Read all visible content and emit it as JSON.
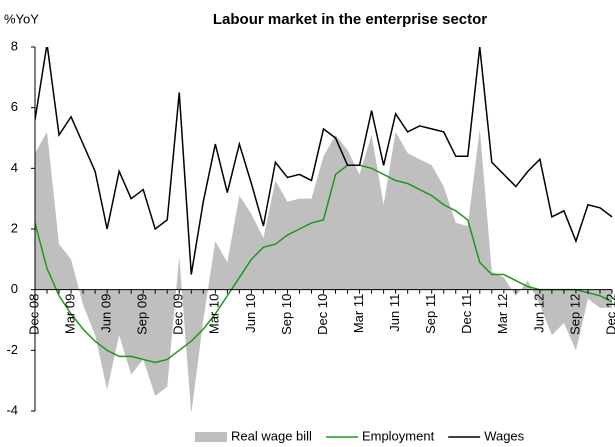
{
  "chart_data": {
    "type": "area-line",
    "title": "Labour market in the enterprise sector",
    "y_label": "%YoY",
    "categories": [
      "Dec 08",
      null,
      null,
      "Mar 09",
      null,
      null,
      "Jun 09",
      null,
      null,
      "Sep 09",
      null,
      null,
      "Dec 09",
      null,
      null,
      "Mar 10",
      null,
      null,
      "Jun 10",
      null,
      null,
      "Sep 10",
      null,
      null,
      "Dec 10",
      null,
      null,
      "Mar 11",
      null,
      null,
      "Jun 11",
      null,
      null,
      "Sep 11",
      null,
      null,
      "Dec 11",
      null,
      null,
      "Mar 12",
      null,
      null,
      "Jun 12",
      null,
      null,
      "Sep 12",
      null,
      null,
      "Dec 12"
    ],
    "ylim": [
      -4,
      8
    ],
    "yticks": [
      -4,
      -2,
      0,
      2,
      4,
      6,
      8
    ],
    "legend": "bottom",
    "series": [
      {
        "name": "Real wage bill",
        "kind": "area",
        "color": "#bfbfbf",
        "values": [
          4.5,
          5.2,
          1.5,
          1.0,
          -0.5,
          -1.5,
          -3.3,
          -1.5,
          -2.8,
          -2.3,
          -3.5,
          -3.2,
          1.1,
          -4.1,
          -1.0,
          1.6,
          0.9,
          3.1,
          2.5,
          1.7,
          3.6,
          2.9,
          3.0,
          3.0,
          4.4,
          5.1,
          4.6,
          3.8,
          5.1,
          2.8,
          5.2,
          4.5,
          4.3,
          4.1,
          3.4,
          2.2,
          2.1,
          5.3,
          0.6,
          0.4,
          -0.2,
          0.3,
          -0.5,
          -1.5,
          -1.1,
          -2.0,
          -0.3,
          -0.6,
          -0.6
        ]
      },
      {
        "name": "Employment",
        "kind": "line",
        "color": "#1a9a1a",
        "values": [
          2.2,
          0.7,
          -0.2,
          -0.8,
          -1.3,
          -1.7,
          -2.0,
          -2.2,
          -2.2,
          -2.3,
          -2.4,
          -2.3,
          -2.0,
          -1.7,
          -1.3,
          -0.8,
          -0.2,
          0.4,
          1.0,
          1.4,
          1.5,
          1.8,
          2.0,
          2.2,
          2.3,
          3.8,
          4.1,
          4.1,
          4.0,
          3.8,
          3.6,
          3.5,
          3.3,
          3.1,
          2.8,
          2.6,
          2.3,
          0.9,
          0.5,
          0.5,
          0.3,
          0.1,
          0.0,
          0.0,
          0.0,
          0.0,
          -0.1,
          -0.2,
          -0.4
        ]
      },
      {
        "name": "Wages",
        "kind": "line",
        "color": "#000000",
        "values": [
          5.6,
          8.1,
          5.1,
          5.7,
          4.8,
          3.9,
          2.0,
          3.9,
          3.0,
          3.3,
          2.0,
          2.3,
          6.5,
          0.5,
          2.9,
          4.8,
          3.2,
          4.8,
          3.5,
          2.1,
          4.2,
          3.7,
          3.8,
          3.6,
          5.3,
          5.0,
          4.1,
          4.1,
          5.9,
          4.1,
          5.8,
          5.2,
          5.4,
          5.3,
          5.2,
          4.4,
          4.4,
          8.0,
          4.2,
          3.8,
          3.4,
          3.9,
          4.3,
          2.4,
          2.6,
          1.6,
          2.8,
          2.7,
          2.4
        ]
      }
    ]
  }
}
